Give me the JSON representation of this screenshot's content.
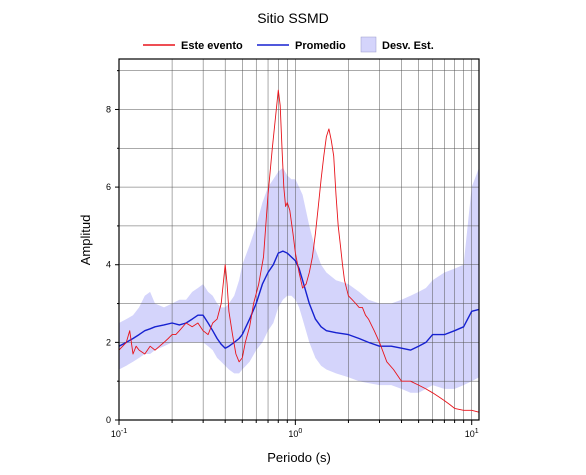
{
  "chart_data": {
    "type": "line",
    "title": "Sitio SSMD",
    "xlabel": "Periodo (s)",
    "ylabel": "Amplitud",
    "x_scale": "log",
    "xlim": [
      0.1,
      11.0
    ],
    "ylim": [
      0,
      9.3
    ],
    "grid": true,
    "legend_position": "top",
    "x_ticks": [
      {
        "base": "10",
        "exp": "-1",
        "value": 0.1
      },
      {
        "base": "10",
        "exp": "0",
        "value": 1
      },
      {
        "base": "10",
        "exp": "1",
        "value": 10
      }
    ],
    "y_ticks": [
      "0",
      "2",
      "4",
      "6",
      "8"
    ],
    "legend": {
      "event_label": "Este evento",
      "mean_label": "Promedio",
      "std_label": "Desv. Est."
    },
    "colors": {
      "event": "#e8141b",
      "mean": "#1621d0",
      "std_fill": "#d4d4fb"
    },
    "series": [
      {
        "name": "Este evento",
        "x": [
          0.1,
          0.105,
          0.11,
          0.115,
          0.12,
          0.125,
          0.13,
          0.14,
          0.15,
          0.16,
          0.17,
          0.18,
          0.19,
          0.2,
          0.21,
          0.22,
          0.24,
          0.26,
          0.28,
          0.3,
          0.32,
          0.34,
          0.36,
          0.38,
          0.4,
          0.41,
          0.42,
          0.44,
          0.46,
          0.48,
          0.5,
          0.52,
          0.55,
          0.58,
          0.62,
          0.66,
          0.7,
          0.74,
          0.78,
          0.8,
          0.82,
          0.84,
          0.86,
          0.88,
          0.9,
          0.93,
          0.97,
          1.0,
          1.05,
          1.1,
          1.15,
          1.2,
          1.25,
          1.3,
          1.35,
          1.4,
          1.45,
          1.5,
          1.55,
          1.6,
          1.65,
          1.7,
          1.75,
          1.8,
          1.85,
          1.9,
          2.0,
          2.1,
          2.2,
          2.3,
          2.4,
          2.5,
          2.6,
          2.8,
          3.0,
          3.3,
          3.6,
          4.0,
          4.5,
          5.0,
          5.5,
          6.0,
          6.5,
          7.0,
          7.5,
          8.0,
          9.0,
          10.0,
          11.0
        ],
        "y": [
          1.8,
          1.9,
          2.0,
          2.3,
          1.7,
          1.9,
          1.8,
          1.7,
          1.9,
          1.8,
          1.9,
          2.0,
          2.1,
          2.2,
          2.2,
          2.3,
          2.5,
          2.4,
          2.5,
          2.3,
          2.2,
          2.5,
          2.6,
          3.0,
          4.0,
          3.5,
          2.8,
          2.2,
          1.7,
          1.5,
          1.6,
          2.0,
          2.4,
          3.0,
          3.5,
          4.2,
          5.8,
          7.0,
          8.0,
          8.5,
          8.1,
          7.0,
          6.0,
          5.5,
          5.6,
          5.4,
          4.8,
          4.3,
          3.8,
          3.4,
          3.5,
          3.8,
          4.2,
          4.8,
          5.5,
          6.2,
          6.8,
          7.3,
          7.5,
          7.2,
          6.8,
          5.8,
          5.0,
          4.5,
          4.0,
          3.6,
          3.2,
          3.1,
          3.0,
          2.9,
          2.9,
          2.7,
          2.6,
          2.3,
          2.0,
          1.5,
          1.3,
          1.0,
          1.0,
          0.9,
          0.8,
          0.7,
          0.6,
          0.5,
          0.4,
          0.3,
          0.25,
          0.25,
          0.2
        ]
      },
      {
        "name": "Promedio",
        "x": [
          0.1,
          0.11,
          0.12,
          0.13,
          0.14,
          0.15,
          0.16,
          0.18,
          0.2,
          0.22,
          0.24,
          0.26,
          0.28,
          0.3,
          0.32,
          0.34,
          0.36,
          0.38,
          0.4,
          0.42,
          0.45,
          0.48,
          0.5,
          0.55,
          0.6,
          0.65,
          0.7,
          0.75,
          0.8,
          0.85,
          0.9,
          0.95,
          1.0,
          1.05,
          1.1,
          1.2,
          1.3,
          1.4,
          1.5,
          1.7,
          2.0,
          2.3,
          2.6,
          3.0,
          3.5,
          4.0,
          4.5,
          5.0,
          5.5,
          6.0,
          7.0,
          8.0,
          9.0,
          10.0,
          11.0
        ],
        "y": [
          1.9,
          2.0,
          2.1,
          2.2,
          2.3,
          2.35,
          2.4,
          2.45,
          2.5,
          2.45,
          2.5,
          2.6,
          2.7,
          2.7,
          2.5,
          2.3,
          2.1,
          1.95,
          1.85,
          1.9,
          2.0,
          2.1,
          2.2,
          2.6,
          3.0,
          3.5,
          3.8,
          4.0,
          4.3,
          4.35,
          4.3,
          4.2,
          4.1,
          3.9,
          3.6,
          3.0,
          2.6,
          2.4,
          2.3,
          2.25,
          2.2,
          2.1,
          2.0,
          1.9,
          1.9,
          1.85,
          1.8,
          1.9,
          2.0,
          2.2,
          2.2,
          2.3,
          2.4,
          2.8,
          2.85
        ]
      },
      {
        "name": "Desv. Est.",
        "x": [
          0.1,
          0.11,
          0.12,
          0.13,
          0.14,
          0.15,
          0.16,
          0.18,
          0.2,
          0.22,
          0.24,
          0.26,
          0.28,
          0.3,
          0.32,
          0.34,
          0.36,
          0.38,
          0.4,
          0.42,
          0.45,
          0.48,
          0.5,
          0.55,
          0.6,
          0.65,
          0.7,
          0.75,
          0.8,
          0.85,
          0.9,
          0.95,
          1.0,
          1.05,
          1.1,
          1.2,
          1.3,
          1.4,
          1.5,
          1.7,
          2.0,
          2.3,
          2.6,
          3.0,
          3.5,
          4.0,
          4.5,
          5.0,
          5.5,
          6.0,
          7.0,
          8.0,
          9.0,
          10.0,
          11.0
        ],
        "upper": [
          2.5,
          2.6,
          2.7,
          2.9,
          3.2,
          3.3,
          3.0,
          2.9,
          3.0,
          3.1,
          3.1,
          3.3,
          3.4,
          3.5,
          3.3,
          3.2,
          3.0,
          2.9,
          2.9,
          3.0,
          3.2,
          3.6,
          4.0,
          4.5,
          5.0,
          5.6,
          6.0,
          6.2,
          6.4,
          6.5,
          6.3,
          6.2,
          6.2,
          6.0,
          5.8,
          5.0,
          4.4,
          4.0,
          3.8,
          3.6,
          3.5,
          3.3,
          3.1,
          3.0,
          3.0,
          3.1,
          3.2,
          3.3,
          3.4,
          3.6,
          3.8,
          3.9,
          4.0,
          6.0,
          6.5
        ],
        "lower": [
          1.3,
          1.4,
          1.5,
          1.6,
          1.7,
          1.7,
          1.8,
          1.9,
          2.0,
          2.0,
          2.0,
          2.0,
          2.0,
          2.0,
          1.9,
          1.8,
          1.6,
          1.5,
          1.4,
          1.3,
          1.2,
          1.2,
          1.3,
          1.5,
          1.8,
          2.0,
          2.3,
          2.5,
          2.9,
          3.1,
          3.2,
          3.2,
          3.1,
          2.9,
          2.6,
          2.0,
          1.6,
          1.4,
          1.3,
          1.2,
          1.1,
          1.0,
          0.95,
          0.9,
          0.9,
          0.8,
          0.7,
          0.7,
          0.8,
          0.9,
          0.8,
          0.8,
          0.9,
          1.0,
          1.1
        ]
      }
    ]
  }
}
